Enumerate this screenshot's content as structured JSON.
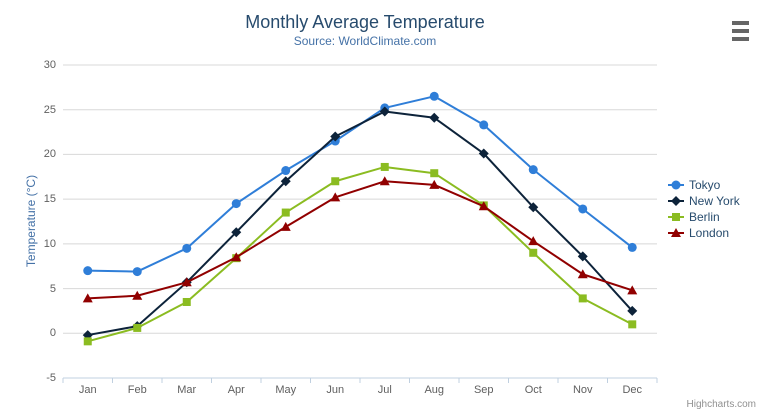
{
  "chart": {
    "credits_label": "Highcharts.com",
    "export_menu": "context-menu",
    "colors": {
      "title": "#274b6d",
      "subtitle": "#4572A7",
      "axis_labels": "#606060",
      "axis_title": "#4572A7",
      "grid_line": "#D8D8D8",
      "axis_line": "#C0D0E0",
      "legend_text": "#274b6d",
      "credits": "#909090",
      "burger": "#666666"
    }
  },
  "chart_data": {
    "type": "line",
    "title": "Monthly Average Temperature",
    "subtitle": "Source: WorldClimate.com",
    "categories": [
      "Jan",
      "Feb",
      "Mar",
      "Apr",
      "May",
      "Jun",
      "Jul",
      "Aug",
      "Sep",
      "Oct",
      "Nov",
      "Dec"
    ],
    "xlabel": "",
    "ylabel": "Temperature (°C)",
    "ylim": [
      -5,
      30
    ],
    "yticks": [
      30,
      25,
      20,
      15,
      10,
      5,
      0,
      -5
    ],
    "grid": true,
    "legend_position": "right",
    "series": [
      {
        "name": "Tokyo",
        "color": "#2f7ed8",
        "marker": "circle",
        "values": [
          7.0,
          6.9,
          9.5,
          14.5,
          18.2,
          21.5,
          25.2,
          26.5,
          23.3,
          18.3,
          13.9,
          9.6
        ]
      },
      {
        "name": "New York",
        "color": "#0d233a",
        "marker": "diamond",
        "values": [
          -0.2,
          0.8,
          5.7,
          11.3,
          17.0,
          22.0,
          24.8,
          24.1,
          20.1,
          14.1,
          8.6,
          2.5
        ]
      },
      {
        "name": "Berlin",
        "color": "#8bbc21",
        "marker": "square",
        "values": [
          -0.9,
          0.6,
          3.5,
          8.4,
          13.5,
          17.0,
          18.6,
          17.9,
          14.3,
          9.0,
          3.9,
          1.0
        ]
      },
      {
        "name": "London",
        "color": "#910000",
        "marker": "triangle",
        "values": [
          3.9,
          4.2,
          5.7,
          8.5,
          11.9,
          15.2,
          17.0,
          16.6,
          14.2,
          10.3,
          6.6,
          4.8
        ]
      }
    ]
  }
}
